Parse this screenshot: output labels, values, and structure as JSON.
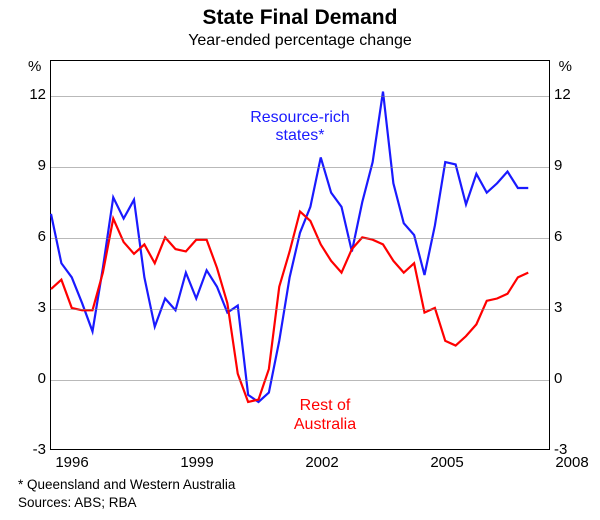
{
  "title": "State Final Demand",
  "subtitle": "Year-ended percentage change",
  "y_unit": "%",
  "x_start": 1996,
  "x_end": 2008,
  "ylim": [
    -3,
    13.5
  ],
  "yticks": [
    -3,
    0,
    3,
    6,
    9,
    12
  ],
  "xticks": [
    1996,
    1999,
    2002,
    2005,
    2008
  ],
  "grid_color": "#808080",
  "background_color": "#ffffff",
  "label_fontsize": 16,
  "tick_fontsize": 15,
  "title_fontsize": 21,
  "line_width": 2.2,
  "series": [
    {
      "name": "resource-rich-states",
      "label": "Resource-rich\nstates*",
      "color": "#1a1aff",
      "label_pos": {
        "x": 2002.0,
        "y": 11.0
      },
      "data": [
        [
          1996.0,
          7.0
        ],
        [
          1996.25,
          4.9
        ],
        [
          1996.5,
          4.3
        ],
        [
          1996.75,
          3.2
        ],
        [
          1997.0,
          2.0
        ],
        [
          1997.25,
          4.7
        ],
        [
          1997.5,
          7.7
        ],
        [
          1997.75,
          6.8
        ],
        [
          1998.0,
          7.6
        ],
        [
          1998.25,
          4.3
        ],
        [
          1998.5,
          2.2
        ],
        [
          1998.75,
          3.4
        ],
        [
          1999.0,
          2.9
        ],
        [
          1999.25,
          4.5
        ],
        [
          1999.5,
          3.4
        ],
        [
          1999.75,
          4.6
        ],
        [
          2000.0,
          3.9
        ],
        [
          2000.25,
          2.8
        ],
        [
          2000.5,
          3.1
        ],
        [
          2000.75,
          -0.7
        ],
        [
          2001.0,
          -1.0
        ],
        [
          2001.25,
          -0.6
        ],
        [
          2001.5,
          1.6
        ],
        [
          2001.75,
          4.3
        ],
        [
          2002.0,
          6.2
        ],
        [
          2002.25,
          7.3
        ],
        [
          2002.5,
          9.4
        ],
        [
          2002.75,
          7.9
        ],
        [
          2003.0,
          7.3
        ],
        [
          2003.25,
          5.4
        ],
        [
          2003.5,
          7.5
        ],
        [
          2003.75,
          9.2
        ],
        [
          2004.0,
          12.2
        ],
        [
          2004.25,
          8.3
        ],
        [
          2004.5,
          6.6
        ],
        [
          2004.75,
          6.1
        ],
        [
          2005.0,
          4.4
        ],
        [
          2005.25,
          6.5
        ],
        [
          2005.5,
          9.2
        ],
        [
          2005.75,
          9.1
        ],
        [
          2006.0,
          7.4
        ],
        [
          2006.25,
          8.7
        ],
        [
          2006.5,
          7.9
        ],
        [
          2006.75,
          8.3
        ],
        [
          2007.0,
          8.8
        ],
        [
          2007.25,
          8.1
        ],
        [
          2007.5,
          8.1
        ]
      ]
    },
    {
      "name": "rest-of-australia",
      "label": "Rest of\nAustralia",
      "color": "#ff0000",
      "label_pos": {
        "x": 2002.6,
        "y": -1.2
      },
      "data": [
        [
          1996.0,
          3.8
        ],
        [
          1996.25,
          4.2
        ],
        [
          1996.5,
          3.0
        ],
        [
          1996.75,
          2.9
        ],
        [
          1997.0,
          2.9
        ],
        [
          1997.25,
          4.5
        ],
        [
          1997.5,
          6.8
        ],
        [
          1997.75,
          5.8
        ],
        [
          1998.0,
          5.3
        ],
        [
          1998.25,
          5.7
        ],
        [
          1998.5,
          4.9
        ],
        [
          1998.75,
          6.0
        ],
        [
          1999.0,
          5.5
        ],
        [
          1999.25,
          5.4
        ],
        [
          1999.5,
          5.9
        ],
        [
          1999.75,
          5.9
        ],
        [
          2000.0,
          4.7
        ],
        [
          2000.25,
          3.2
        ],
        [
          2000.5,
          0.2
        ],
        [
          2000.75,
          -1.0
        ],
        [
          2001.0,
          -0.9
        ],
        [
          2001.25,
          0.4
        ],
        [
          2001.5,
          3.9
        ],
        [
          2001.75,
          5.4
        ],
        [
          2002.0,
          7.1
        ],
        [
          2002.25,
          6.7
        ],
        [
          2002.5,
          5.7
        ],
        [
          2002.75,
          5.0
        ],
        [
          2003.0,
          4.5
        ],
        [
          2003.25,
          5.5
        ],
        [
          2003.5,
          6.0
        ],
        [
          2003.75,
          5.9
        ],
        [
          2004.0,
          5.7
        ],
        [
          2004.25,
          5.0
        ],
        [
          2004.5,
          4.5
        ],
        [
          2004.75,
          4.9
        ],
        [
          2005.0,
          2.8
        ],
        [
          2005.25,
          3.0
        ],
        [
          2005.5,
          1.6
        ],
        [
          2005.75,
          1.4
        ],
        [
          2006.0,
          1.8
        ],
        [
          2006.25,
          2.3
        ],
        [
          2006.5,
          3.3
        ],
        [
          2006.75,
          3.4
        ],
        [
          2007.0,
          3.6
        ],
        [
          2007.25,
          4.3
        ],
        [
          2007.5,
          4.5
        ]
      ]
    }
  ],
  "footnote": "* Queensland and Western Australia",
  "sources": "Sources: ABS; RBA"
}
